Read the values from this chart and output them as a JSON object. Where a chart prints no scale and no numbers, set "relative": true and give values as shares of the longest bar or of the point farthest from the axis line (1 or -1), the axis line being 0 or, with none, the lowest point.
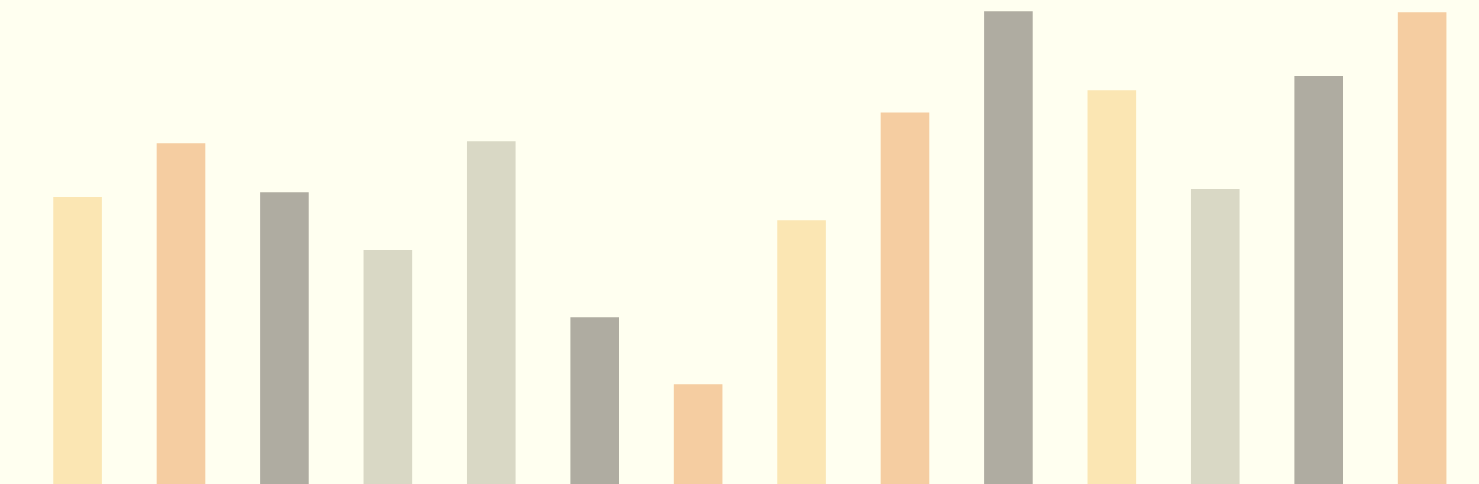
{
  "chart_data": {
    "type": "bar",
    "relative": true,
    "categories": [
      null,
      null,
      null,
      null,
      null,
      null,
      null,
      null,
      null,
      null,
      null,
      null,
      null,
      null
    ],
    "values": [
      0.607,
      0.721,
      0.617,
      0.495,
      0.725,
      0.353,
      0.211,
      0.558,
      0.786,
      1.0,
      0.833,
      0.624,
      0.863,
      0.998
    ],
    "colors": [
      "#fbe6b3",
      "#f5cda1",
      "#afaca1",
      "#d9d8c5",
      "#d9d8c5",
      "#afaca1",
      "#f5cda1",
      "#fbe6b3",
      "#f5cda1",
      "#afaca1",
      "#fbe6b3",
      "#d9d8c5",
      "#afaca1",
      "#f5cda1"
    ]
  }
}
